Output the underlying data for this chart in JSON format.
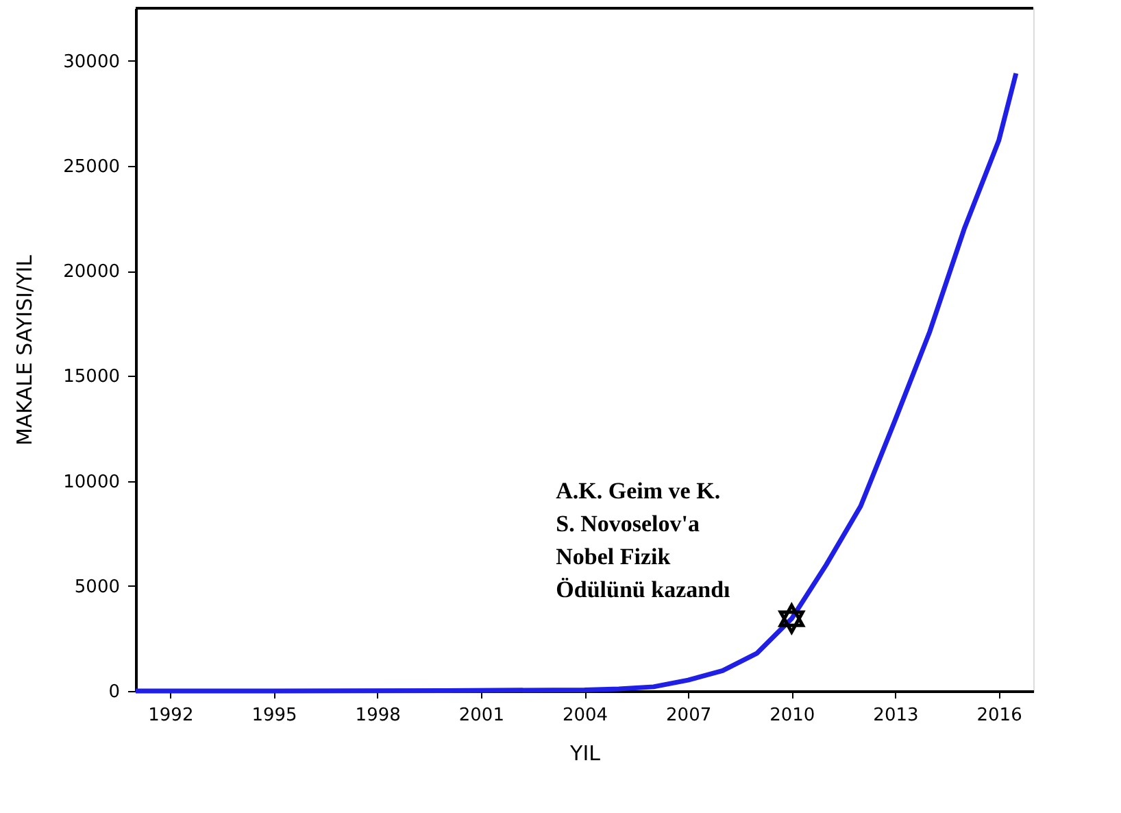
{
  "chart_data": {
    "type": "line",
    "xlabel": "YIL",
    "ylabel": "MAKALE SAYISI/YIL",
    "xlim": [
      1991,
      2017
    ],
    "xticks": [
      1992,
      1995,
      1998,
      2001,
      2004,
      2007,
      2010,
      2013,
      2016
    ],
    "ylim": [
      0,
      32500
    ],
    "yticks": [
      0,
      5000,
      10000,
      15000,
      20000,
      25000,
      30000
    ],
    "grid": false,
    "marker": "none",
    "line_style": "solid",
    "series": [
      {
        "color": "#1f1fe6",
        "x": [
          1991,
          1995,
          2000,
          2004,
          2005,
          2006,
          2007,
          2008,
          2009,
          2010,
          2011,
          2012,
          2013,
          2014,
          2015,
          2016,
          2016.5
        ],
        "values": [
          0,
          0,
          20,
          50,
          100,
          200,
          520,
          970,
          1800,
          3440,
          6000,
          8800,
          12900,
          17100,
          22000,
          26200,
          29400
        ]
      }
    ],
    "annotations": [
      {
        "text": "A.K. Geim ve K.\nS. Novoselov'a\nNobel Fizik\nÖdülünü kazandı",
        "x": 2010,
        "y": 3440
      }
    ]
  }
}
